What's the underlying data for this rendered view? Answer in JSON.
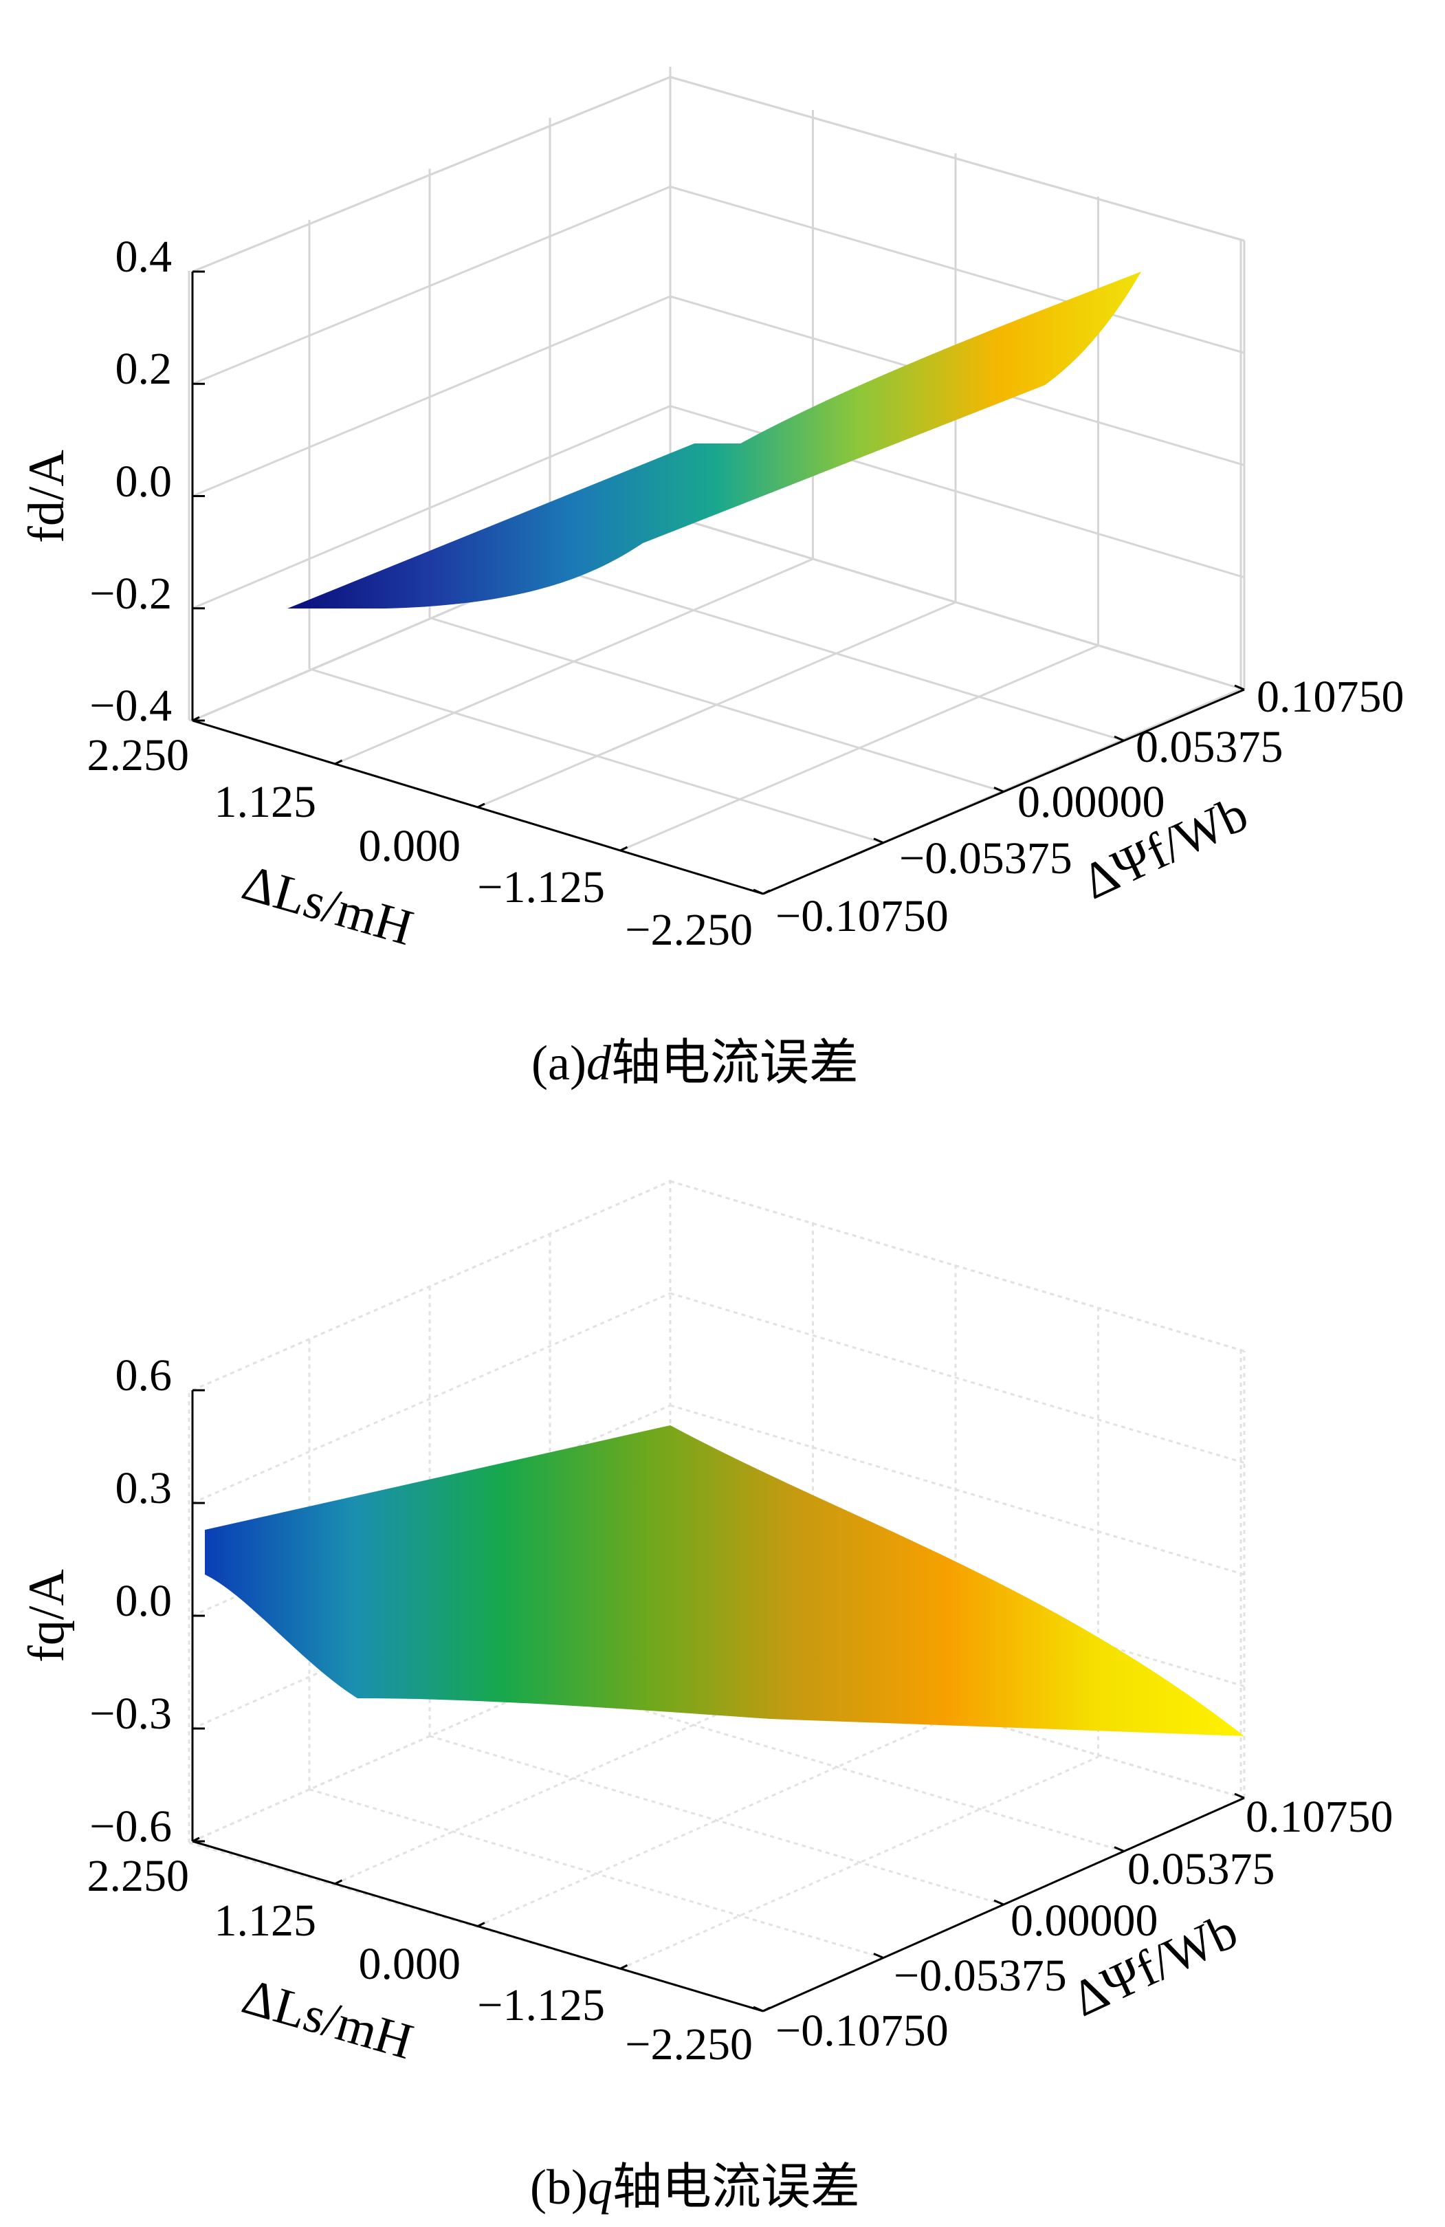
{
  "chart_data": [
    {
      "type": "surface",
      "caption": "(a)d轴电流误差",
      "caption_prefix": "(a)",
      "caption_var": "d",
      "caption_text": "轴电流误差",
      "zlabel": "fd/A",
      "xlabel": "ΔLs/mH",
      "ylabel": "ΔΨf/Wb",
      "z_ticks": [
        "0.4",
        "0.2",
        "0.0",
        "−0.2",
        "−0.4"
      ],
      "zlim": [
        -0.4,
        0.4
      ],
      "x_ticks": [
        "2.250",
        "1.125",
        "0.000",
        "−1.125",
        "−2.250"
      ],
      "xlim": [
        -2.25,
        2.25
      ],
      "y_ticks": [
        "−0.10750",
        "−0.05375",
        "0.00000",
        "0.05375",
        "0.10750"
      ],
      "ylim": [
        -0.1075,
        0.1075
      ],
      "grid": true,
      "colormap": [
        "#0a0f7c",
        "#1d3aa3",
        "#1b79b6",
        "#19a78f",
        "#8cc63a",
        "#f5b700",
        "#f0e10a"
      ],
      "surface": {
        "x": [
          -2.25,
          2.25
        ],
        "y": [
          -0.1075,
          0.1075
        ],
        "z_corners": {
          "xmax_ymin": -0.2,
          "xmin_ymin": -0.05,
          "xmax_ymax": 0.05,
          "xmin_ymax": 0.4
        }
      }
    },
    {
      "type": "surface",
      "caption": "(b)q轴电流误差",
      "caption_prefix": "(b)",
      "caption_var": "q",
      "caption_text": "轴电流误差",
      "zlabel": "fq/A",
      "xlabel": "ΔLs/mH",
      "ylabel": "ΔΨf/Wb",
      "z_ticks": [
        "0.6",
        "0.3",
        "0.0",
        "−0.3",
        "−0.6"
      ],
      "zlim": [
        -0.6,
        0.6
      ],
      "x_ticks": [
        "2.250",
        "1.125",
        "0.000",
        "−1.125",
        "−2.250"
      ],
      "xlim": [
        -2.25,
        2.25
      ],
      "y_ticks": [
        "−0.10750",
        "−0.05375",
        "0.00000",
        "0.05375",
        "0.10750"
      ],
      "ylim": [
        -0.1075,
        0.1075
      ],
      "grid": true,
      "colormap": [
        "#0a3fb5",
        "#1a8fb0",
        "#17a84c",
        "#6fa81c",
        "#c89a10",
        "#f7a000",
        "#f5e000",
        "#fff200"
      ],
      "surface": {
        "x": [
          -2.25,
          2.25
        ],
        "y": [
          -0.1075,
          0.1075
        ],
        "z_corners": {
          "xmax_ymin": 0.2,
          "xmin_ymin": 0.52,
          "xmax_ymax": -0.15,
          "xmin_ymax": -0.3
        }
      }
    }
  ]
}
